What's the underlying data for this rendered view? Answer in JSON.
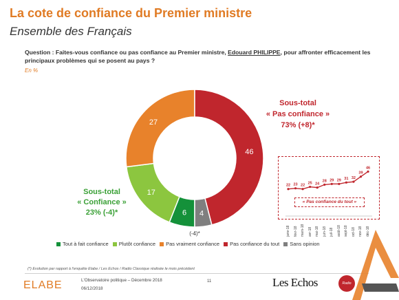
{
  "header": {
    "title": "La cote de confiance du Premier ministre",
    "subtitle": "Ensemble des Français",
    "question_prefix": "Question : Faites-vous confiance ou pas confiance au Premier ministre, ",
    "question_name": "Edouard PHILIPPE",
    "question_suffix": ", pour affronter efficacement les principaux problèmes qui se posent au pays ?",
    "unit": "En %"
  },
  "chart_data": [
    {
      "type": "pie",
      "variant": "donut",
      "categories": [
        "Tout à fait confiance",
        "Plutôt confiance",
        "Pas vraiment confiance",
        "Pas confiance du tout",
        "Sans opinion"
      ],
      "values": [
        6,
        17,
        27,
        46,
        4
      ],
      "labels": [
        "6",
        "17",
        "27",
        "46",
        "4"
      ],
      "colors": [
        "#14913a",
        "#8cc63f",
        "#e8822b",
        "#c0262d",
        "#7f7f7f"
      ],
      "annotations": [
        {
          "text_lines": [
            "Sous-total",
            "« Pas confiance »",
            "73% (+8)*"
          ],
          "color": "#c0262d"
        },
        {
          "text_lines": [
            "Sous-total",
            "« Confiance »",
            "23% (-4)*"
          ],
          "color": "#3aa036"
        },
        {
          "text": "(-4)*"
        }
      ],
      "legend_position": "bottom"
    },
    {
      "type": "line",
      "title": "« Pas confiance du tout »",
      "x": [
        "janv-18",
        "févr-18",
        "mars-18",
        "avr-18",
        "mai-18",
        "juin-18",
        "juil-18",
        "août-18",
        "sept-18",
        "oct-18",
        "nov-18",
        "déc-18"
      ],
      "values": [
        22,
        23,
        22,
        25,
        24,
        28,
        29,
        29,
        31,
        32,
        39,
        46
      ],
      "color": "#c0262d",
      "ylim": [
        0,
        50
      ]
    }
  ],
  "legend": {
    "items": [
      {
        "label": "Tout à fait confiance",
        "color": "#14913a"
      },
      {
        "label": "Plutôt confiance",
        "color": "#8cc63f"
      },
      {
        "label": "Pas vraiment confiance",
        "color": "#e8822b"
      },
      {
        "label": "Pas confiance du tout",
        "color": "#c0262d"
      },
      {
        "label": "Sans opinion",
        "color": "#7f7f7f"
      }
    ]
  },
  "footer": {
    "footnote": "(*) Evolution par rapport à l'enquête Elabe / Les Echos / Radio Classique réalisée le mois précédent",
    "brand": "ELABE",
    "observatoire": "L'Observatoire politique – Décembre 2018",
    "date": "06/12/2018",
    "page": "11",
    "partner": "Les Echos",
    "partner_badge": "Radio Classique"
  }
}
